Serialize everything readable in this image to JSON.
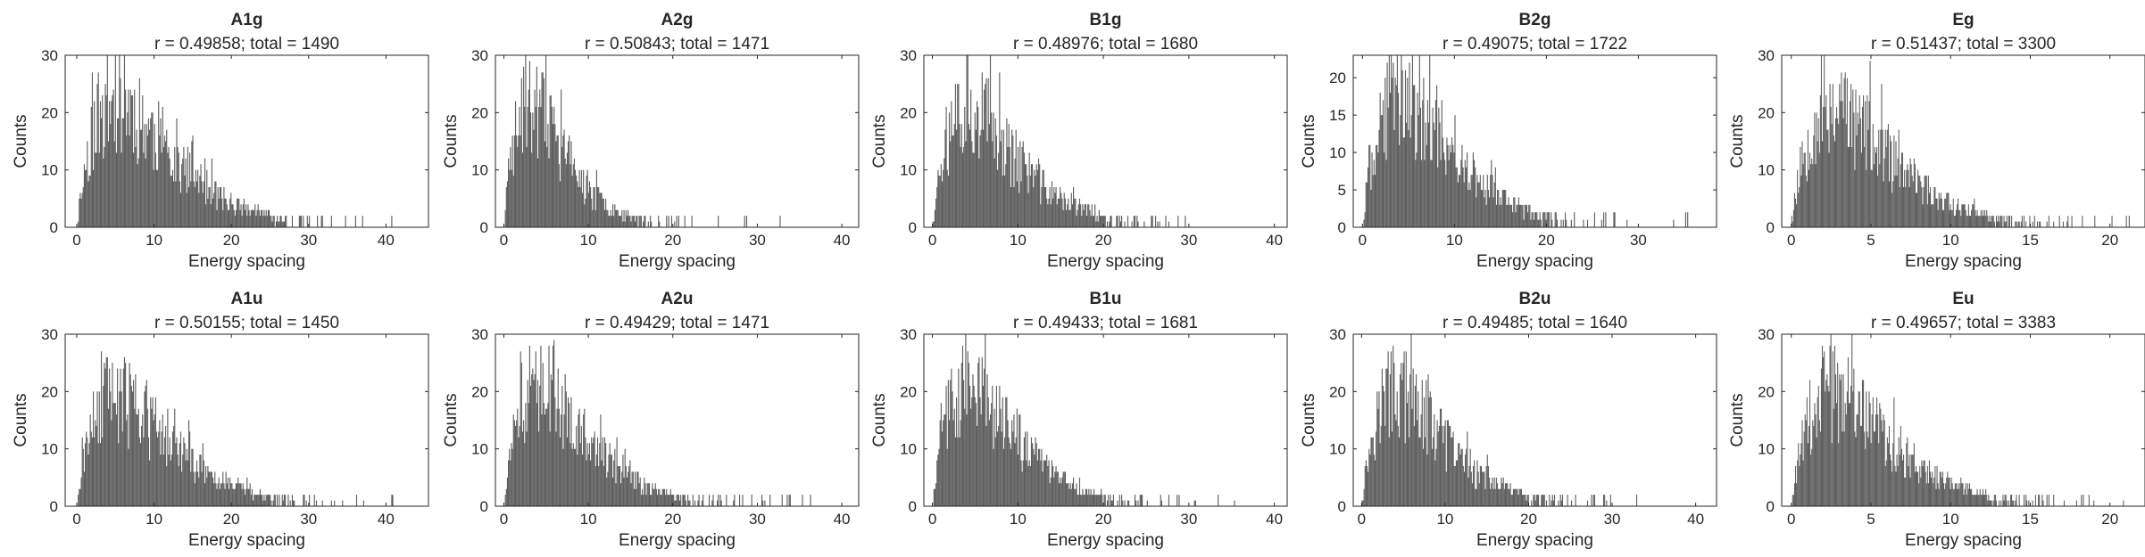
{
  "figure": {
    "xlabel": "Energy spacing",
    "ylabel": "Counts",
    "bar_color": "#5f5f5f",
    "axis_color": "#262626"
  },
  "chart_data": [
    {
      "type": "bar",
      "title": "A1g",
      "subtitle": "r = 0.49858; total = 1490",
      "xlabel": "Energy spacing",
      "ylabel": "Counts",
      "xlim": [
        -1.5,
        45.5
      ],
      "ylim": [
        0,
        30
      ],
      "xticks": [
        0,
        10,
        20,
        30,
        40
      ],
      "yticks": [
        0,
        10,
        20,
        30
      ],
      "bin_width": 0.13,
      "profile": {
        "mode": 5,
        "peak": 22,
        "max_x": 43,
        "noise": 0.45,
        "seed": 11
      }
    },
    {
      "type": "bar",
      "title": "A2g",
      "subtitle": "r = 0.50843; total = 1471",
      "xlabel": "Energy spacing",
      "ylabel": "Counts",
      "xlim": [
        -1,
        42
      ],
      "ylim": [
        0,
        30
      ],
      "xticks": [
        0,
        10,
        20,
        30,
        40
      ],
      "yticks": [
        0,
        10,
        20,
        30
      ],
      "bin_width": 0.12,
      "profile": {
        "mode": 3,
        "peak": 21,
        "max_x": 40,
        "noise": 0.45,
        "seed": 23
      }
    },
    {
      "type": "bar",
      "title": "B1g",
      "subtitle": "r = 0.48976; total = 1680",
      "xlabel": "Energy spacing",
      "ylabel": "Counts",
      "xlim": [
        -1,
        41.5
      ],
      "ylim": [
        0,
        30
      ],
      "xticks": [
        0,
        10,
        20,
        30,
        40
      ],
      "yticks": [
        0,
        10,
        20,
        30
      ],
      "bin_width": 0.12,
      "profile": {
        "mode": 4,
        "peak": 21,
        "max_x": 40,
        "noise": 0.45,
        "seed": 37
      }
    },
    {
      "type": "bar",
      "title": "B2g",
      "subtitle": "r = 0.49075; total = 1722",
      "xlabel": "Energy spacing",
      "ylabel": "Counts",
      "xlim": [
        -1,
        38.5
      ],
      "ylim": [
        0,
        23
      ],
      "xticks": [
        0,
        10,
        20,
        30
      ],
      "yticks": [
        0,
        5,
        10,
        15,
        20
      ],
      "bin_width": 0.11,
      "profile": {
        "mode": 4,
        "peak": 17,
        "max_x": 36,
        "noise": 0.45,
        "seed": 41
      }
    },
    {
      "type": "bar",
      "title": "Eg",
      "subtitle": "r = 0.51437; total = 3300",
      "xlabel": "Energy spacing",
      "ylabel": "Counts",
      "xlim": [
        -0.6,
        22.2
      ],
      "ylim": [
        0,
        30
      ],
      "xticks": [
        0,
        5,
        10,
        15,
        20
      ],
      "yticks": [
        0,
        10,
        20,
        30
      ],
      "bin_width": 0.06,
      "profile": {
        "mode": 2.5,
        "peak": 21,
        "max_x": 22,
        "noise": 0.45,
        "seed": 53
      }
    },
    {
      "type": "bar",
      "title": "A1u",
      "subtitle": "r = 0.50155; total = 1450",
      "xlabel": "Energy spacing",
      "ylabel": "Counts",
      "xlim": [
        -1.5,
        45.5
      ],
      "ylim": [
        0,
        30
      ],
      "xticks": [
        0,
        10,
        20,
        30,
        40
      ],
      "yticks": [
        0,
        10,
        20,
        30
      ],
      "bin_width": 0.13,
      "profile": {
        "mode": 5,
        "peak": 19,
        "max_x": 43,
        "noise": 0.45,
        "seed": 61
      }
    },
    {
      "type": "bar",
      "title": "A2u",
      "subtitle": "r = 0.49429; total = 1471",
      "xlabel": "Energy spacing",
      "ylabel": "Counts",
      "xlim": [
        -1,
        42
      ],
      "ylim": [
        0,
        30
      ],
      "xticks": [
        0,
        10,
        20,
        30,
        40
      ],
      "yticks": [
        0,
        10,
        20,
        30
      ],
      "bin_width": 0.12,
      "profile": {
        "mode": 4,
        "peak": 21,
        "max_x": 40,
        "noise": 0.45,
        "seed": 73
      }
    },
    {
      "type": "bar",
      "title": "B1u",
      "subtitle": "r = 0.49433; total = 1681",
      "xlabel": "Energy spacing",
      "ylabel": "Counts",
      "xlim": [
        -1,
        41.5
      ],
      "ylim": [
        0,
        30
      ],
      "xticks": [
        0,
        10,
        20,
        30,
        40
      ],
      "yticks": [
        0,
        10,
        20,
        30
      ],
      "bin_width": 0.12,
      "profile": {
        "mode": 4,
        "peak": 21,
        "max_x": 40,
        "noise": 0.45,
        "seed": 89
      }
    },
    {
      "type": "bar",
      "title": "B2u",
      "subtitle": "r = 0.49485; total = 1640",
      "xlabel": "Energy spacing",
      "ylabel": "Counts",
      "xlim": [
        -1,
        42.5
      ],
      "ylim": [
        0,
        30
      ],
      "xticks": [
        0,
        10,
        20,
        30,
        40
      ],
      "yticks": [
        0,
        10,
        20,
        30
      ],
      "bin_width": 0.12,
      "profile": {
        "mode": 4,
        "peak": 20,
        "max_x": 41,
        "noise": 0.45,
        "seed": 97
      }
    },
    {
      "type": "bar",
      "title": "Eu",
      "subtitle": "r = 0.49657; total = 3383",
      "xlabel": "Energy spacing",
      "ylabel": "Counts",
      "xlim": [
        -0.6,
        22.2
      ],
      "ylim": [
        0,
        30
      ],
      "xticks": [
        0,
        5,
        10,
        15,
        20
      ],
      "yticks": [
        0,
        10,
        20,
        30
      ],
      "bin_width": 0.06,
      "profile": {
        "mode": 2.5,
        "peak": 20,
        "max_x": 22,
        "noise": 0.45,
        "seed": 101
      }
    }
  ]
}
